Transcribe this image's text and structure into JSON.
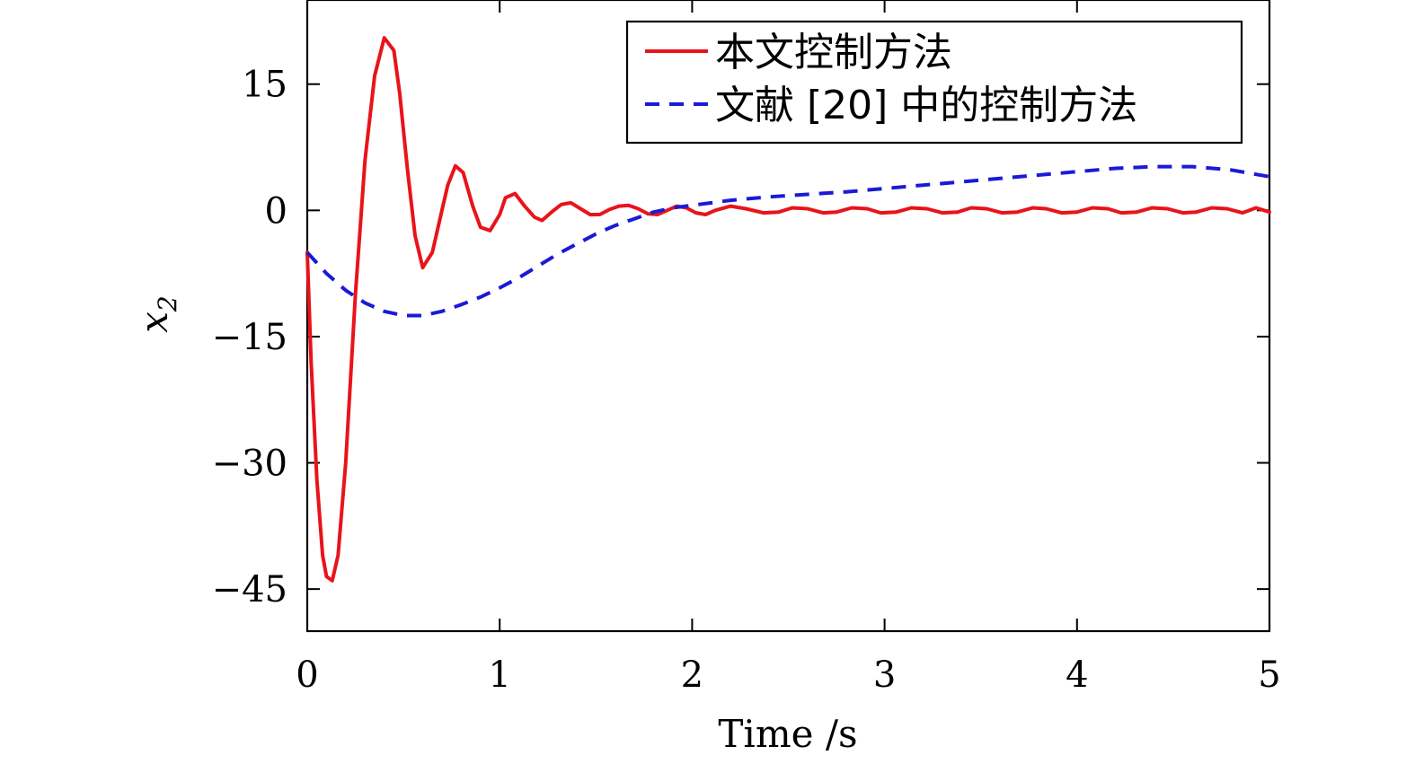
{
  "chart_data": {
    "type": "line",
    "xlabel": "Time /s",
    "ylabel": "x",
    "ylabel_sub": "2",
    "xlim": [
      0,
      5
    ],
    "ylim": [
      -50,
      25
    ],
    "xticks": [
      0,
      1,
      2,
      3,
      4,
      5
    ],
    "xtick_labels": [
      "0",
      "1",
      "2",
      "3",
      "4",
      "5"
    ],
    "yticks": [
      15,
      0,
      -15,
      -30,
      -45
    ],
    "ytick_labels": [
      "15",
      "0",
      "−15",
      "−30",
      "−45"
    ],
    "grid": false,
    "legend_position": "top-right",
    "series": [
      {
        "name": "本文控制方法",
        "color": "#e8141b",
        "dash": "solid",
        "x": [
          0,
          0.02,
          0.05,
          0.08,
          0.1,
          0.13,
          0.16,
          0.2,
          0.25,
          0.3,
          0.35,
          0.4,
          0.45,
          0.48,
          0.52,
          0.56,
          0.6,
          0.65,
          0.7,
          0.73,
          0.77,
          0.81,
          0.86,
          0.9,
          0.95,
          1.0,
          1.03,
          1.08,
          1.13,
          1.18,
          1.22,
          1.27,
          1.32,
          1.37,
          1.42,
          1.47,
          1.52,
          1.57,
          1.62,
          1.67,
          1.72,
          1.77,
          1.82,
          1.87,
          1.92,
          1.97,
          2.02,
          2.07,
          2.12,
          2.2,
          2.28,
          2.37,
          2.45,
          2.52,
          2.6,
          2.68,
          2.75,
          2.83,
          2.91,
          2.98,
          3.06,
          3.14,
          3.22,
          3.3,
          3.38,
          3.45,
          3.53,
          3.61,
          3.69,
          3.77,
          3.84,
          3.92,
          4.0,
          4.08,
          4.16,
          4.23,
          4.31,
          4.39,
          4.47,
          4.55,
          4.62,
          4.7,
          4.78,
          4.86,
          4.93,
          5.0
        ],
        "y": [
          -5,
          -18,
          -32,
          -41,
          -43.5,
          -44,
          -41,
          -30,
          -10,
          6,
          16,
          20.5,
          19,
          14,
          5,
          -3,
          -6.8,
          -5,
          0,
          3,
          5.3,
          4.5,
          0.5,
          -2,
          -2.4,
          -0.5,
          1.5,
          2,
          0.5,
          -0.8,
          -1.2,
          -0.2,
          0.7,
          0.9,
          0.2,
          -0.5,
          -0.5,
          0.1,
          0.5,
          0.6,
          0.2,
          -0.4,
          -0.5,
          0,
          0.5,
          0.3,
          -0.3,
          -0.5,
          0,
          0.5,
          0.2,
          -0.3,
          -0.2,
          0.3,
          0.2,
          -0.3,
          -0.2,
          0.3,
          0.2,
          -0.3,
          -0.2,
          0.3,
          0.2,
          -0.3,
          -0.2,
          0.3,
          0.2,
          -0.3,
          -0.2,
          0.3,
          0.2,
          -0.3,
          -0.2,
          0.3,
          0.2,
          -0.3,
          -0.2,
          0.3,
          0.2,
          -0.3,
          -0.2,
          0.3,
          0.2,
          -0.3,
          0.3,
          -0.2
        ]
      },
      {
        "name": "文献 [20] 中的控制方法",
        "color": "#1a1ad6",
        "dash": "dashed",
        "x": [
          0,
          0.1,
          0.2,
          0.3,
          0.4,
          0.5,
          0.6,
          0.7,
          0.8,
          0.9,
          1.0,
          1.1,
          1.2,
          1.3,
          1.4,
          1.5,
          1.6,
          1.7,
          1.8,
          1.9,
          2.0,
          2.2,
          2.4,
          2.6,
          2.8,
          3.0,
          3.2,
          3.4,
          3.6,
          3.8,
          4.0,
          4.2,
          4.4,
          4.6,
          4.8,
          5.0
        ],
        "y": [
          -5,
          -7.5,
          -9.5,
          -11,
          -12,
          -12.5,
          -12.5,
          -12,
          -11.2,
          -10.3,
          -9.2,
          -8,
          -6.6,
          -5.2,
          -4,
          -2.8,
          -1.8,
          -1,
          -0.2,
          0.3,
          0.6,
          1.2,
          1.6,
          1.9,
          2.2,
          2.6,
          3,
          3.4,
          3.8,
          4.2,
          4.6,
          5,
          5.2,
          5.2,
          4.8,
          4
        ]
      }
    ]
  }
}
